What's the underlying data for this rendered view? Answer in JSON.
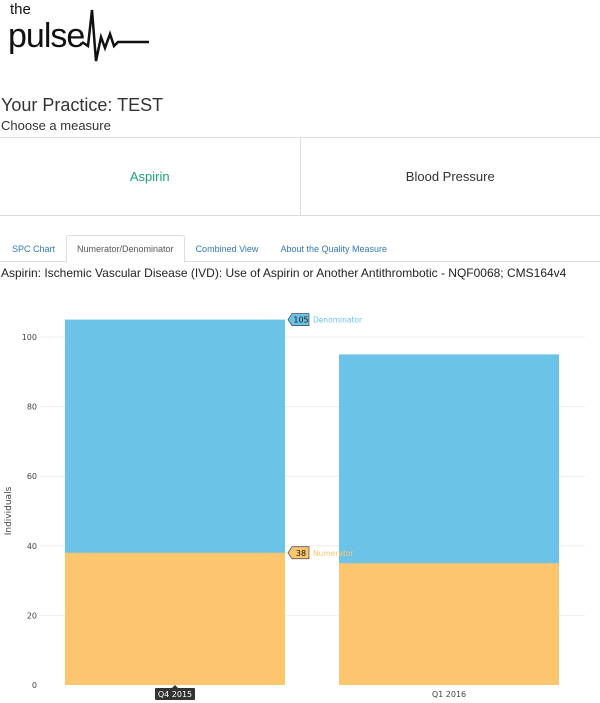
{
  "logo": {
    "line1": "the",
    "line2": "pulse"
  },
  "header": {
    "title": "Your Practice: TEST",
    "subtitle": "Choose a measure"
  },
  "measures": [
    {
      "label": "Aspirin",
      "active": true
    },
    {
      "label": "Blood Pressure",
      "active": false
    }
  ],
  "tabs": [
    {
      "label": "SPC Chart",
      "active": false
    },
    {
      "label": "Numerator/Denominator",
      "active": true
    },
    {
      "label": "Combined View",
      "active": false
    },
    {
      "label": "About the Quality Measure",
      "active": false
    }
  ],
  "measure_description": "Aspirin: Ischemic Vascular Disease (IVD): Use of Aspirin or Another Antithrombotic - NQF0068; CMS164v4",
  "colors": {
    "denominator": "#6cc3e8",
    "numerator": "#fdc56d",
    "accent": "#1aa37a",
    "link": "#337ab7"
  },
  "chart_data": {
    "type": "bar",
    "overlay": true,
    "categories": [
      "Q4 2015",
      "Q1 2016"
    ],
    "series": [
      {
        "name": "Denominator",
        "values": [
          105,
          95
        ],
        "color": "#6cc3e8"
      },
      {
        "name": "Numerator",
        "values": [
          38,
          35
        ],
        "color": "#fdc56d"
      }
    ],
    "ylabel": "Individuals",
    "ylim": [
      0,
      100
    ],
    "yticks": [
      0,
      20,
      40,
      60,
      80,
      100
    ],
    "grid": true,
    "hover": {
      "category": "Q4 2015",
      "labels": [
        {
          "series": "Denominator",
          "value": "105"
        },
        {
          "series": "Numerator",
          "value": "38"
        }
      ]
    }
  }
}
